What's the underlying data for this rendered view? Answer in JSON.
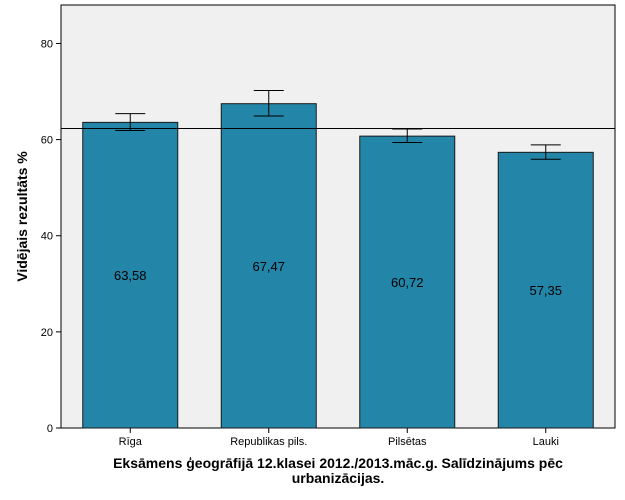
{
  "chart_data": {
    "type": "bar",
    "title_lines": [
      "Eksāmens ģeogrāfijā 12.klasei 2012./2013.māc.g. Salīdzinājums pēc",
      "urbanizācijas."
    ],
    "ylabel": "Vidējais rezultāts %",
    "xlabel": "",
    "categories": [
      "Rīga",
      "Republikas pils.",
      "Pilsētas",
      "Lauki"
    ],
    "values": [
      63.58,
      67.47,
      60.72,
      57.35
    ],
    "value_labels": [
      "63,58",
      "67,47",
      "60,72",
      "57,35"
    ],
    "error_low": [
      61.9,
      64.9,
      59.4,
      55.9
    ],
    "error_high": [
      65.4,
      70.2,
      62.2,
      58.9
    ],
    "reference_line": 62.3,
    "ylim": [
      0,
      88
    ],
    "yticks": [
      0,
      20,
      40,
      60,
      80
    ],
    "grid": false,
    "colors": {
      "bar": "#2385a8",
      "bar_stroke": "#1a1a1a",
      "plot_bg": "#f0f0f0",
      "axis": "#000000"
    }
  }
}
